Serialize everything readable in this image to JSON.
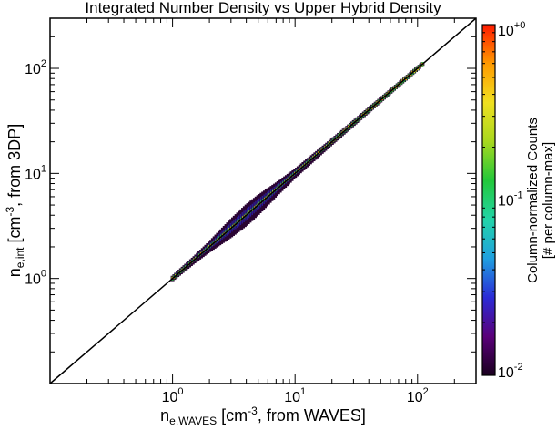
{
  "chart_data": {
    "type": "heatmap",
    "title": "Integrated Number Density vs Upper Hybrid Density",
    "xlabel": {
      "base": "n",
      "sub": "e,WAVES",
      "pre": " [cm",
      "sup": "-3",
      "post": ", from WAVES]"
    },
    "ylabel": {
      "base": "n",
      "sub": "e,int",
      "pre": " [cm",
      "sup": "-3",
      "post": ", from 3DP]"
    },
    "x_scale": "log",
    "y_scale": "log",
    "xlim": [
      0.1,
      300
    ],
    "ylim": [
      0.1,
      300
    ],
    "x_ticks": [
      {
        "value": 1,
        "base": "10",
        "exp": "0"
      },
      {
        "value": 10,
        "base": "10",
        "exp": "1"
      },
      {
        "value": 100,
        "base": "10",
        "exp": "2"
      }
    ],
    "y_ticks": [
      {
        "value": 1,
        "base": "10",
        "exp": "0"
      },
      {
        "value": 10,
        "base": "10",
        "exp": "1"
      },
      {
        "value": 100,
        "base": "10",
        "exp": "2"
      }
    ],
    "reference_line": "y = x",
    "grid": false,
    "density_ridge": {
      "x": [
        1.0,
        1.5,
        2.0,
        3.0,
        4.0,
        5.0,
        7.0,
        10.0,
        20.0,
        40.0,
        70.0,
        100.0,
        110.0
      ],
      "y": [
        1.0,
        1.5,
        2.0,
        3.0,
        4.0,
        5.0,
        7.0,
        10.0,
        20.0,
        40.0,
        70.0,
        100.0,
        110.0
      ],
      "width_factor": [
        1.06,
        1.08,
        1.12,
        1.22,
        1.26,
        1.24,
        1.16,
        1.1,
        1.07,
        1.06,
        1.05,
        1.05,
        1.04
      ]
    },
    "colorbar": {
      "label_line1": "Column-normalized Counts",
      "label_line2": "[# per column-max]",
      "scale": "log",
      "range": [
        0.01,
        1
      ],
      "ticks": [
        {
          "value": 1,
          "base": "10",
          "exp": "+0"
        },
        {
          "value": 0.1,
          "base": "10",
          "exp": "-1"
        },
        {
          "value": 0.01,
          "base": "10",
          "exp": "-2"
        }
      ],
      "colors": [
        "#1a001f",
        "#5a007a",
        "#2b2bd6",
        "#1fa0e0",
        "#22d4a8",
        "#22c83a",
        "#a8d81e",
        "#f0e020",
        "#ff9a00",
        "#ff1a00"
      ]
    }
  }
}
